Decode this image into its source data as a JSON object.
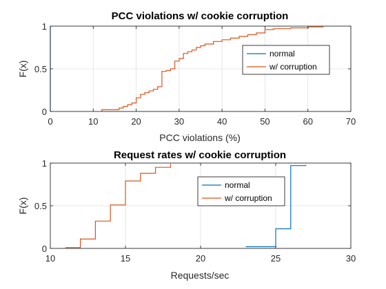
{
  "colors": {
    "normal": "#0072BD",
    "corruption": "#D95319",
    "grid": "#dfdfdf",
    "axis": "#262626"
  },
  "chart_data": [
    {
      "type": "line",
      "step": true,
      "title": "PCC violations w/ cookie corruption",
      "xlabel": "PCC violations (%)",
      "ylabel": "F(x)",
      "xlim": [
        0,
        70
      ],
      "ylim": [
        0,
        1
      ],
      "xticks": [
        0,
        10,
        20,
        30,
        40,
        50,
        60,
        70
      ],
      "yticks": [
        0,
        0.5,
        1
      ],
      "xtick_labels": [
        "0",
        "10",
        "20",
        "30",
        "40",
        "50",
        "60",
        "70"
      ],
      "ytick_labels": [
        "0",
        "0.5",
        "1"
      ],
      "grid": true,
      "legend": "right",
      "series": [
        {
          "name": "normal",
          "color_key": "normal",
          "x": [
            0,
            0
          ],
          "y": [
            0,
            1
          ]
        },
        {
          "name": "w/ corruption",
          "color_key": "corruption",
          "x": [
            12,
            12,
            16,
            17,
            18,
            19,
            20,
            21,
            22,
            23,
            24,
            25,
            26,
            27,
            28,
            29,
            30,
            31,
            32,
            33,
            34,
            35,
            36,
            38,
            40,
            42,
            44,
            46,
            48,
            50,
            52,
            54,
            56,
            58,
            60,
            63.5
          ],
          "y": [
            0,
            0.02,
            0.04,
            0.06,
            0.08,
            0.1,
            0.16,
            0.2,
            0.22,
            0.24,
            0.26,
            0.29,
            0.47,
            0.48,
            0.5,
            0.59,
            0.62,
            0.68,
            0.7,
            0.72,
            0.75,
            0.77,
            0.79,
            0.82,
            0.84,
            0.86,
            0.88,
            0.9,
            0.92,
            0.96,
            0.97,
            0.97,
            0.98,
            0.98,
            0.99,
            1.0
          ]
        }
      ]
    },
    {
      "type": "line",
      "step": true,
      "title": "Request rates w/ cookie corruption",
      "xlabel": "Requests/sec",
      "ylabel": "F(x)",
      "xlim": [
        10,
        30
      ],
      "ylim": [
        0,
        1
      ],
      "xticks": [
        10,
        15,
        20,
        25,
        30
      ],
      "yticks": [
        0,
        0.5,
        1
      ],
      "xtick_labels": [
        "10",
        "15",
        "20",
        "25",
        "30"
      ],
      "ytick_labels": [
        "0",
        "0.5",
        "1"
      ],
      "grid": true,
      "legend": "right",
      "series": [
        {
          "name": "normal",
          "color_key": "normal",
          "x": [
            23,
            25,
            26,
            27
          ],
          "y": [
            0.02,
            0.23,
            0.97,
            0.98
          ]
        },
        {
          "name": "w/ corruption",
          "color_key": "corruption",
          "x": [
            11,
            12,
            13,
            14,
            15,
            16,
            17,
            18
          ],
          "y": [
            0.01,
            0.11,
            0.32,
            0.51,
            0.79,
            0.88,
            0.95,
            0.99
          ]
        }
      ]
    }
  ]
}
